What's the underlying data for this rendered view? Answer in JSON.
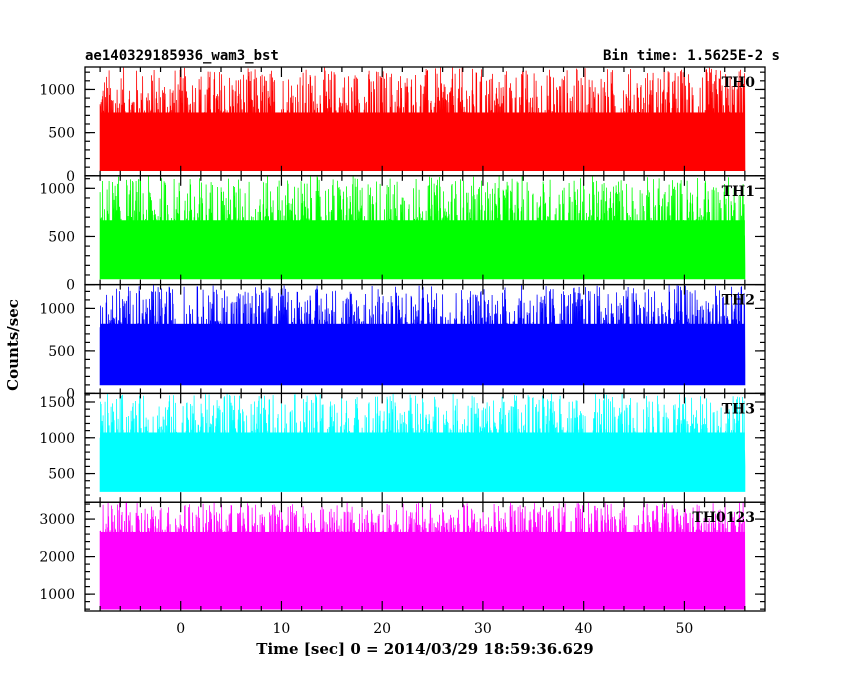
{
  "header": {
    "title": "ae140329185936_wam3_bst",
    "bin_time": "Bin time: 1.5625E-2 s"
  },
  "axes": {
    "xlabel": "Time [sec] 0 = 2014/03/29 18:59:36.629",
    "ylabel": "Counts/sec"
  },
  "chart_data": {
    "type": "line",
    "title": "ae140329185936_wam3_bst",
    "subtitle": "Bin time: 1.5625E-2 s",
    "xlabel": "Time [sec] 0 = 2014/03/29 18:59:36.629",
    "ylabel": "Counts/sec",
    "xlim": [
      -9.5,
      58
    ],
    "x_ticks": [
      0,
      10,
      20,
      30,
      40,
      50
    ],
    "data_x_range": [
      -8,
      56
    ],
    "grid": false,
    "panels": [
      {
        "name": "TH0",
        "color": "#ff0000",
        "ylim": [
          0,
          1260
        ],
        "y_ticks": [
          0,
          500,
          1000
        ],
        "mean": 450,
        "min": 60,
        "max": 1260
      },
      {
        "name": "TH1",
        "color": "#00ff00",
        "ylim": [
          0,
          1130
        ],
        "y_ticks": [
          0,
          500,
          1000
        ],
        "mean": 420,
        "min": 60,
        "max": 1130
      },
      {
        "name": "TH2",
        "color": "#0000ff",
        "ylim": [
          0,
          1280
        ],
        "y_ticks": [
          0,
          500,
          1000
        ],
        "mean": 570,
        "min": 100,
        "max": 1280
      },
      {
        "name": "TH3",
        "color": "#00ffff",
        "ylim": [
          100,
          1620
        ],
        "y_ticks": [
          500,
          1000,
          1500
        ],
        "mean": 780,
        "min": 250,
        "max": 1620
      },
      {
        "name": "TH0123",
        "color": "#ff00ff",
        "ylim": [
          550,
          3450
        ],
        "y_ticks": [
          1000,
          2000,
          3000
        ],
        "mean": 2230,
        "min": 600,
        "max": 3450
      }
    ]
  }
}
